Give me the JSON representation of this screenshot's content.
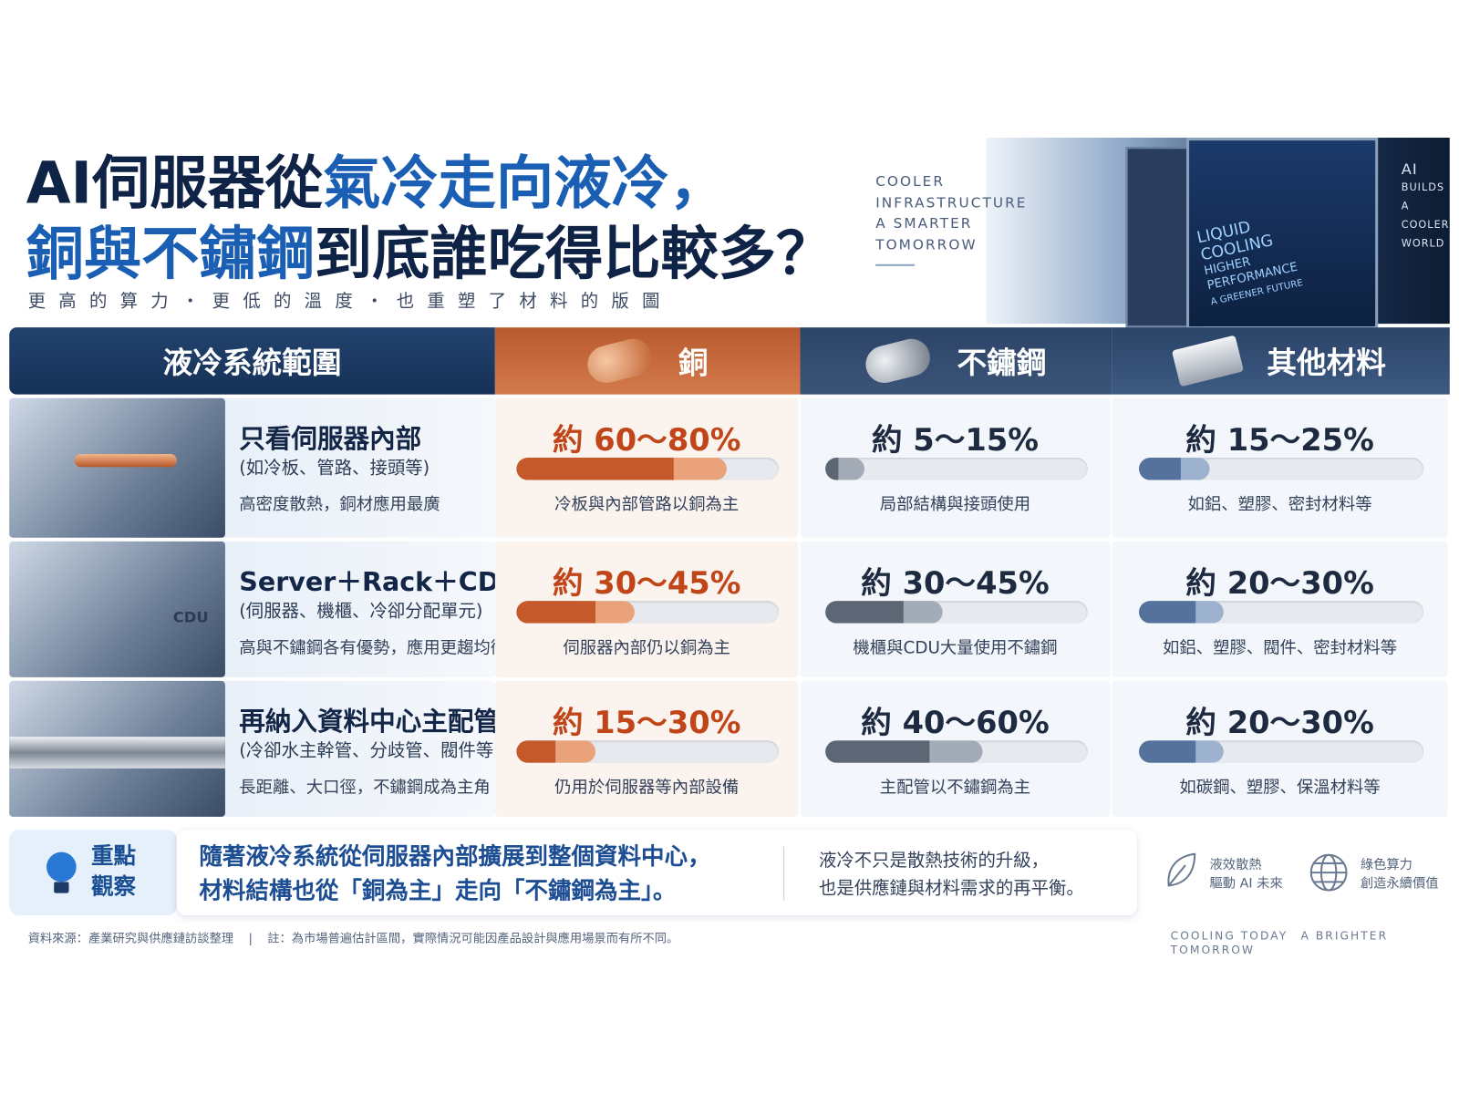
{
  "header": {
    "title": {
      "line1": [
        "AI伺服器從",
        "氣冷走向液冷，"
      ],
      "line2": [
        "銅與不鏽鋼",
        "到底誰吃得比較多？"
      ]
    },
    "subtitle": "更高的算力・更低的溫度・也重塑了材料的版圖",
    "tagline": [
      "COOLER",
      "INFRASTRUCTURE",
      "A SMARTER",
      "TOMORROW"
    ],
    "screen": [
      "LIQUID",
      "COOLING",
      "HIGHER",
      "PERFORMANCE",
      "A GREENER FUTURE"
    ],
    "corner": [
      "AI",
      "BUILDS",
      "A COOLER",
      "WORLD"
    ]
  },
  "table": {
    "columns": [
      "液冷系統範圍",
      "銅",
      "不鏽鋼",
      "其他材料"
    ],
    "rows": [
      {
        "name": "只看伺服器內部",
        "sub": "(如冷板、管路、接頭等)",
        "desc": "高密度散熱，銅材應用最廣",
        "cells": [
          {
            "label": "約 60～80%",
            "low": 60,
            "high": 80,
            "note": "冷板與內部管路以銅為主"
          },
          {
            "label": "約 5～15%",
            "low": 5,
            "high": 15,
            "note": "局部結構與接頭使用"
          },
          {
            "label": "約 15～25%",
            "low": 15,
            "high": 25,
            "note": "如鋁、塑膠、密封材料等"
          }
        ]
      },
      {
        "name": "Server＋Rack＋CDU",
        "sub": "(伺服器、機櫃、冷卻分配單元)",
        "desc": "高與不鏽鋼各有優勢，應用更趨均衡",
        "image_label": "CDU",
        "cells": [
          {
            "label": "約 30～45%",
            "low": 30,
            "high": 45,
            "note": "伺服器內部仍以銅為主"
          },
          {
            "label": "約 30～45%",
            "low": 30,
            "high": 45,
            "note": "機櫃與CDU大量使用不鏽鋼"
          },
          {
            "label": "約 20～30%",
            "low": 20,
            "high": 30,
            "note": "如鋁、塑膠、閥件、密封材料等"
          }
        ]
      },
      {
        "name": "再納入資料中心主配管",
        "sub": "(冷卻水主幹管、分歧管、閥件等)",
        "desc": "長距離、大口徑，不鏽鋼成為主角",
        "cells": [
          {
            "label": "約 15～30%",
            "low": 15,
            "high": 30,
            "note": "仍用於伺服器等內部設備"
          },
          {
            "label": "約 40～60%",
            "low": 40,
            "high": 60,
            "note": "主配管以不鏽鋼為主"
          },
          {
            "label": "約 20～30%",
            "low": 20,
            "high": 30,
            "note": "如碳鋼、塑膠、保溫材料等"
          }
        ]
      }
    ]
  },
  "insight": {
    "badge": [
      "重點",
      "觀察"
    ],
    "main": [
      "隨著液冷系統從伺服器內部擴展到整個資料中心，",
      "材料結構也從「銅為主」走向「不鏽鋼為主」。"
    ],
    "side": [
      "液冷不只是散熱技術的升級，",
      "也是供應鏈與材料需求的再平衡。"
    ],
    "icons": [
      [
        "液效散熱",
        "驅動 AI 未來"
      ],
      [
        "綠色算力",
        "創造永續價值"
      ]
    ]
  },
  "footer": {
    "source": "資料來源：產業研究與供應鏈訪談整理",
    "note": "註：為市場普遍估計區間，實際情況可能因產品設計與應用場景而有所不同。",
    "tagline": "COOLING TODAY　A BRIGHTER TOMORROW"
  }
}
